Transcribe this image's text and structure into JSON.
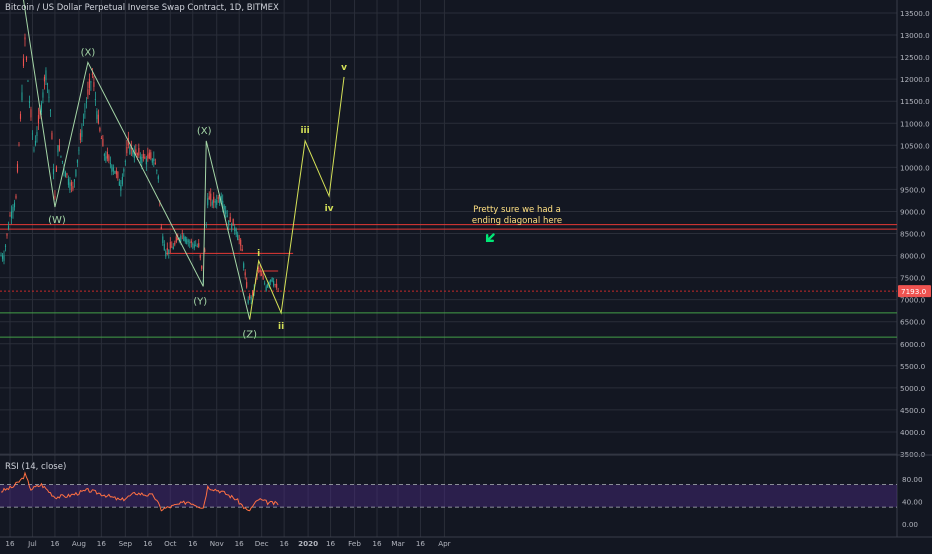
{
  "window": {
    "title": "Bitcoin / US Dollar Perpetual Inverse Swap Contract, 1D, BITMEX"
  },
  "rsi_panel": {
    "title": "RSI (14, close)",
    "y_ticks": [
      "80.00",
      "40.00",
      "0.00"
    ]
  },
  "annotation_text": [
    "Pretty sure we had a",
    "ending diagonal here"
  ],
  "price_badge": "7193.0",
  "colors": {
    "background": "#131722",
    "grid": "#2a2e39",
    "candle_up": "#26a69a",
    "candle_down": "#ef5350",
    "wave_line": "#a5d6a7",
    "projection_line": "#d4e157",
    "resistance_line": "#e53935",
    "support_line": "#43a047",
    "rsi_line": "#ff7043",
    "rsi_band": "#4a2a80",
    "annotation_arrow": "#00e676"
  },
  "chart_data": [
    {
      "type": "candlestick",
      "title": "Bitcoin / US Dollar Perpetual Inverse Swap Contract, 1D, BITMEX",
      "x_tick_labels": [
        "16",
        "Jul",
        "16",
        "Aug",
        "16",
        "Sep",
        "16",
        "Oct",
        "16",
        "Nov",
        "16",
        "Dec",
        "16",
        "2020",
        "16",
        "Feb",
        "16",
        "Mar",
        "16",
        "Apr"
      ],
      "y_tick_labels": [
        "13500.0",
        "13000.0",
        "12500.0",
        "12000.0",
        "11500.0",
        "11000.0",
        "10500.0",
        "10000.0",
        "9500.0",
        "9000.0",
        "8500.0",
        "8000.0",
        "7500.0",
        "7000.0",
        "6500.0",
        "6000.0",
        "5500.0",
        "5000.0",
        "4500.0",
        "4000.0",
        "3500.0"
      ],
      "ylim": [
        3100,
        13850
      ],
      "price_series_close": [
        {
          "x": "2019-06-12",
          "y": 8000
        },
        {
          "x": "2019-06-16",
          "y": 8900
        },
        {
          "x": "2019-06-20",
          "y": 9300
        },
        {
          "x": "2019-06-26",
          "y": 12900
        },
        {
          "x": "2019-06-29",
          "y": 11500
        },
        {
          "x": "2019-07-02",
          "y": 10400
        },
        {
          "x": "2019-07-06",
          "y": 11200
        },
        {
          "x": "2019-07-10",
          "y": 12200
        },
        {
          "x": "2019-07-13",
          "y": 11300
        },
        {
          "x": "2019-07-16",
          "y": 9300
        },
        {
          "x": "2019-07-18",
          "y": 10500
        },
        {
          "x": "2019-07-23",
          "y": 9900
        },
        {
          "x": "2019-07-28",
          "y": 9500
        },
        {
          "x": "2019-08-01",
          "y": 10400
        },
        {
          "x": "2019-08-06",
          "y": 11500
        },
        {
          "x": "2019-08-10",
          "y": 12100
        },
        {
          "x": "2019-08-14",
          "y": 11000
        },
        {
          "x": "2019-08-18",
          "y": 10300
        },
        {
          "x": "2019-08-24",
          "y": 10000
        },
        {
          "x": "2019-08-29",
          "y": 9600
        },
        {
          "x": "2019-09-03",
          "y": 10500
        },
        {
          "x": "2019-09-08",
          "y": 10300
        },
        {
          "x": "2019-09-14",
          "y": 10200
        },
        {
          "x": "2019-09-20",
          "y": 10200
        },
        {
          "x": "2019-09-23",
          "y": 9800
        },
        {
          "x": "2019-09-25",
          "y": 8600
        },
        {
          "x": "2019-09-28",
          "y": 8100
        },
        {
          "x": "2019-10-03",
          "y": 8200
        },
        {
          "x": "2019-10-09",
          "y": 8500
        },
        {
          "x": "2019-10-14",
          "y": 8300
        },
        {
          "x": "2019-10-20",
          "y": 8200
        },
        {
          "x": "2019-10-23",
          "y": 7450
        },
        {
          "x": "2019-10-25",
          "y": 8700
        },
        {
          "x": "2019-10-26",
          "y": 9300
        },
        {
          "x": "2019-10-30",
          "y": 9200
        },
        {
          "x": "2019-11-04",
          "y": 9350
        },
        {
          "x": "2019-11-09",
          "y": 8800
        },
        {
          "x": "2019-11-14",
          "y": 8600
        },
        {
          "x": "2019-11-18",
          "y": 8100
        },
        {
          "x": "2019-11-22",
          "y": 7000
        },
        {
          "x": "2019-11-25",
          "y": 7100
        },
        {
          "x": "2019-11-29",
          "y": 7700
        },
        {
          "x": "2019-12-04",
          "y": 7300
        },
        {
          "x": "2019-12-08",
          "y": 7500
        },
        {
          "x": "2019-12-12",
          "y": 7193
        }
      ],
      "wave_labels_xyz": [
        {
          "label": "(W)",
          "x": "2019-07-16",
          "y": 9100
        },
        {
          "label": "(X)",
          "x": "2019-08-07",
          "y": 12380
        },
        {
          "label": "(Y)",
          "x": "2019-10-23",
          "y": 7300
        },
        {
          "label": "(X)",
          "x": "2019-10-25",
          "y": 10600
        },
        {
          "label": "(Z)",
          "x": "2019-11-23",
          "y": 6550
        }
      ],
      "projection_labels": [
        {
          "label": "i",
          "x": "2019-11-29",
          "y": 7880
        },
        {
          "label": "ii",
          "x": "2019-12-14",
          "y": 6700
        },
        {
          "label": "iii",
          "x": "2019-12-30",
          "y": 10600
        },
        {
          "label": "iv",
          "x": "2020-01-15",
          "y": 9350
        },
        {
          "label": "v",
          "x": "2020-01-25",
          "y": 12050
        }
      ],
      "horizontal_levels": [
        {
          "kind": "resistance",
          "y": 8700
        },
        {
          "kind": "resistance",
          "y": 8600
        },
        {
          "kind": "resistance",
          "y": 8050
        },
        {
          "kind": "resistance",
          "y": 7650
        },
        {
          "kind": "resistance",
          "y": 7193
        },
        {
          "kind": "support",
          "y": 6700
        },
        {
          "kind": "support",
          "y": 6150
        }
      ],
      "last_price": 7193.0
    },
    {
      "type": "line",
      "title": "RSI (14, close)",
      "ylim": [
        0,
        100
      ],
      "bands": [
        30,
        70
      ],
      "y_tick_labels": [
        "80.00",
        "40.00",
        "0.00"
      ],
      "series": [
        {
          "values": [
            {
              "x": "2019-06-10",
              "y": 58
            },
            {
              "x": "2019-06-18",
              "y": 66
            },
            {
              "x": "2019-06-24",
              "y": 80
            },
            {
              "x": "2019-06-26",
              "y": 88
            },
            {
              "x": "2019-06-30",
              "y": 62
            },
            {
              "x": "2019-07-07",
              "y": 70
            },
            {
              "x": "2019-07-16",
              "y": 48
            },
            {
              "x": "2019-07-25",
              "y": 50
            },
            {
              "x": "2019-08-07",
              "y": 60
            },
            {
              "x": "2019-08-18",
              "y": 52
            },
            {
              "x": "2019-08-29",
              "y": 42
            },
            {
              "x": "2019-09-08",
              "y": 55
            },
            {
              "x": "2019-09-20",
              "y": 50
            },
            {
              "x": "2019-09-25",
              "y": 26
            },
            {
              "x": "2019-10-03",
              "y": 32
            },
            {
              "x": "2019-10-13",
              "y": 40
            },
            {
              "x": "2019-10-23",
              "y": 29
            },
            {
              "x": "2019-10-26",
              "y": 66
            },
            {
              "x": "2019-11-04",
              "y": 58
            },
            {
              "x": "2019-11-14",
              "y": 44
            },
            {
              "x": "2019-11-22",
              "y": 22
            },
            {
              "x": "2019-11-29",
              "y": 44
            },
            {
              "x": "2019-12-05",
              "y": 38
            },
            {
              "x": "2019-12-12",
              "y": 36
            }
          ]
        }
      ]
    }
  ]
}
